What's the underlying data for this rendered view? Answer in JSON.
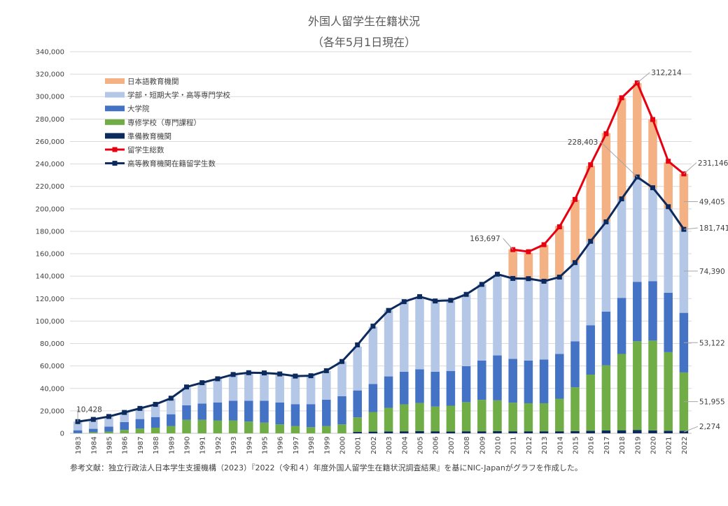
{
  "chart_data": {
    "type": "bar",
    "title": "外国人留学生在籍状況",
    "subtitle": "（各年5月1日現在）",
    "ylim": [
      0,
      340000
    ],
    "y_ticks": [
      "0",
      "20,000",
      "40,000",
      "60,000",
      "80,000",
      "100,000",
      "120,000",
      "140,000",
      "160,000",
      "180,000",
      "200,000",
      "220,000",
      "240,000",
      "260,000",
      "280,000",
      "300,000",
      "320,000",
      "340,000"
    ],
    "grid": true,
    "legend_position": "top-left",
    "categories": [
      "1983",
      "1984",
      "1985",
      "1986",
      "1987",
      "1988",
      "1989",
      "1990",
      "1991",
      "1992",
      "1993",
      "1994",
      "1995",
      "1996",
      "1997",
      "1998",
      "1999",
      "2000",
      "2001",
      "2002",
      "2003",
      "2004",
      "2005",
      "2006",
      "2007",
      "2008",
      "2009",
      "2010",
      "2011",
      "2012",
      "2013",
      "2014",
      "2015",
      "2016",
      "2017",
      "2018",
      "2019",
      "2020",
      "2021",
      "2022"
    ],
    "series": [
      {
        "name": "準備教育機関",
        "kind": "bar",
        "color": "#0d2a5c",
        "values": [
          0,
          0,
          0,
          0,
          0,
          0,
          0,
          0,
          0,
          0,
          0,
          0,
          0,
          0,
          0,
          0,
          0,
          0,
          1200,
          1500,
          1700,
          1800,
          2000,
          1800,
          1600,
          1800,
          1800,
          1900,
          1800,
          1800,
          1800,
          1800,
          2000,
          2300,
          2500,
          2700,
          3000,
          2600,
          2300,
          2274
        ]
      },
      {
        "name": "専修学校（専門課程）",
        "kind": "bar",
        "color": "#70ad47",
        "values": [
          200,
          1000,
          1500,
          3000,
          4200,
          5000,
          6500,
          12000,
          12000,
          11500,
          11500,
          10500,
          9500,
          8000,
          6500,
          5500,
          6500,
          8000,
          13000,
          17500,
          21000,
          24000,
          25000,
          22000,
          23000,
          26000,
          28000,
          27500,
          25500,
          25000,
          25000,
          29000,
          39000,
          50000,
          58000,
          68000,
          79000,
          80000,
          70000,
          51955
        ]
      },
      {
        "name": "大学院",
        "kind": "bar",
        "color": "#4472c4",
        "values": [
          2500,
          3000,
          4500,
          7000,
          8500,
          9500,
          10500,
          13000,
          14500,
          16000,
          17500,
          18500,
          19500,
          19500,
          19500,
          20500,
          23500,
          25000,
          24000,
          25000,
          28000,
          29000,
          30000,
          31000,
          31000,
          32000,
          35000,
          40000,
          39000,
          38000,
          39000,
          40000,
          41000,
          44000,
          48000,
          50000,
          53000,
          53000,
          53000,
          53122
        ]
      },
      {
        "name": "学部・短期大学・高等専門学校",
        "kind": "bar",
        "color": "#b4c7e7",
        "values": [
          7728,
          8000,
          8500,
          8500,
          9300,
          11000,
          14000,
          16000,
          18500,
          21000,
          23500,
          25000,
          25000,
          25500,
          25000,
          25500,
          25500,
          31000,
          39000,
          51000,
          59000,
          63000,
          64500,
          63000,
          62500,
          64000,
          68000,
          72000,
          72000,
          72000,
          70000,
          69000,
          70000,
          75000,
          80000,
          88000,
          93000,
          83000,
          75000,
          74390
        ]
      },
      {
        "name": "日本語教育機関",
        "kind": "bar",
        "color": "#f4b183",
        "values": [
          0,
          0,
          0,
          0,
          0,
          0,
          0,
          0,
          0,
          0,
          0,
          0,
          0,
          0,
          0,
          0,
          0,
          0,
          0,
          0,
          0,
          0,
          0,
          0,
          0,
          0,
          0,
          0,
          25697,
          24000,
          32000,
          45000,
          56000,
          67000,
          79000,
          90000,
          84000,
          61000,
          41000,
          49405
        ]
      },
      {
        "name": "留学生総数",
        "kind": "line",
        "color": "#e60012",
        "values": [
          null,
          null,
          null,
          null,
          null,
          null,
          null,
          null,
          null,
          null,
          null,
          null,
          null,
          null,
          null,
          null,
          null,
          null,
          null,
          null,
          null,
          null,
          null,
          null,
          null,
          null,
          null,
          null,
          163697,
          161800,
          168100,
          184000,
          208400,
          239300,
          267000,
          298980,
          312214,
          279600,
          242400,
          231146
        ]
      },
      {
        "name": "高等教育機関在籍留学生数",
        "kind": "line",
        "color": "#0d2a5c",
        "values": [
          10428,
          12400,
          15000,
          18600,
          22200,
          25800,
          31300,
          41300,
          45100,
          48600,
          52400,
          54000,
          53800,
          52900,
          51000,
          51300,
          55800,
          64000,
          78800,
          95500,
          109500,
          117300,
          121800,
          117900,
          118500,
          123800,
          132700,
          141800,
          138000,
          137800,
          135500,
          139200,
          152100,
          171100,
          188400,
          208900,
          228403,
          218800,
          201900,
          181741
        ]
      }
    ],
    "annotations": [
      {
        "text": "10,428",
        "category": "1983",
        "series": "高等教育機関在籍留学生数"
      },
      {
        "text": "163,697",
        "category": "2011",
        "series": "留学生総数"
      },
      {
        "text": "312,214",
        "category": "2019",
        "series": "留学生総数"
      },
      {
        "text": "228,403",
        "category": "2019",
        "series": "高等教育機関在籍留学生数"
      },
      {
        "text": "231,146",
        "category": "2022",
        "series": "留学生総数"
      },
      {
        "text": "49,405",
        "category": "2022",
        "series": "日本語教育機関"
      },
      {
        "text": "181,741",
        "category": "2022",
        "series": "高等教育機関在籍留学生数"
      },
      {
        "text": "74,390",
        "category": "2022",
        "series": "学部・短期大学・高等専門学校"
      },
      {
        "text": "53,122",
        "category": "2022",
        "series": "大学院"
      },
      {
        "text": "51,955",
        "category": "2022",
        "series": "専修学校（専門課程）"
      },
      {
        "text": "2,274",
        "category": "2022",
        "series": "準備教育機関"
      }
    ],
    "legend_order": [
      "日本語教育機関",
      "学部・短期大学・高等専門学校",
      "大学院",
      "専修学校（専門課程）",
      "準備教育機関",
      "留学生総数",
      "高等教育機関在籍留学生数"
    ],
    "footnote": "参考文献：独立行政法人日本学生支援機構（2023）『2022（令和４）年度外国人留学生在籍状況調査結果』を基にNIC-Japanがグラフを作成した。"
  }
}
